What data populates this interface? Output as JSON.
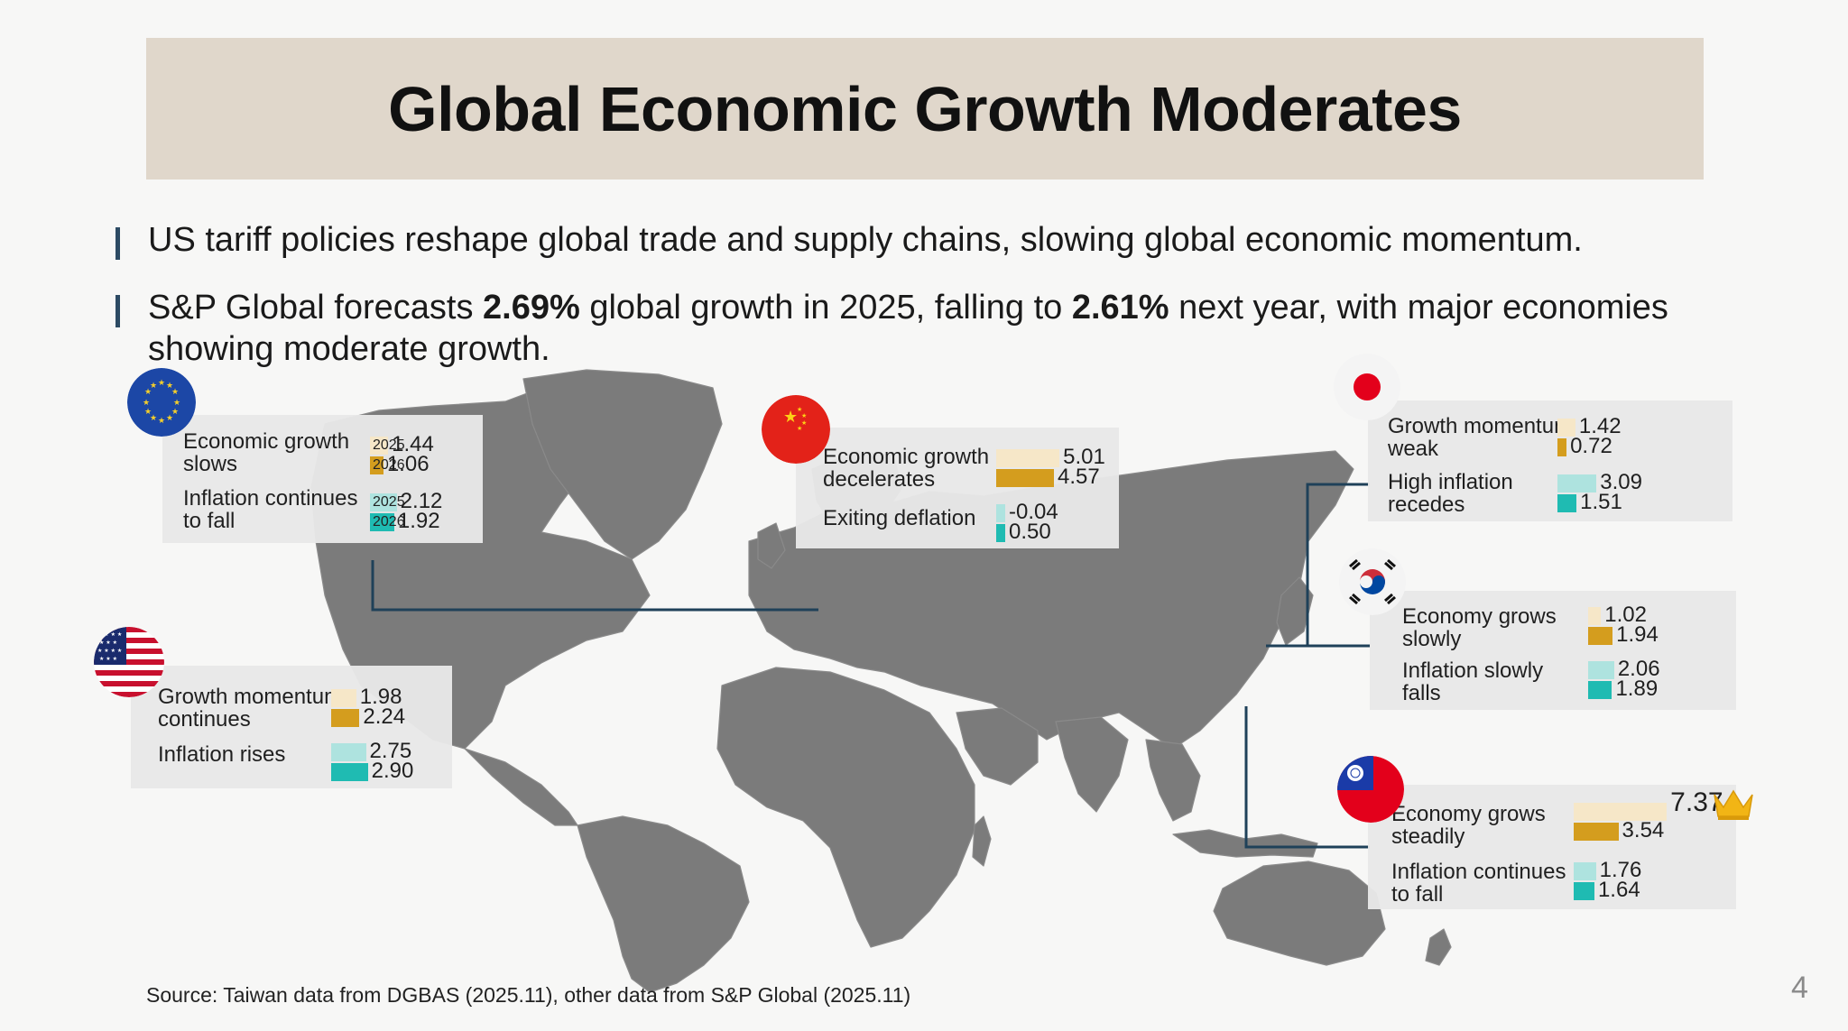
{
  "slide": {
    "title": "Global Economic Growth Moderates",
    "bullets": [
      {
        "parts": [
          "US tariff policies reshape global trade and supply chains, slowing global economic momentum."
        ]
      },
      {
        "pre": "S&P Global forecasts ",
        "bold1": "2.69%",
        "mid": " global growth in 2025, falling to ",
        "bold2": "2.61%",
        "post": " next year, with major economies showing moderate growth."
      }
    ],
    "source": "Source: Taiwan data from DGBAS (2025.11), other data from S&P Global (2025.11)",
    "page_number": "4"
  },
  "colors": {
    "bar_2025_growth": "#f6e7c8",
    "bar_2026_growth": "#d49d1e",
    "bar_2025_inflation": "#aee3df",
    "bar_2026_inflation": "#1fbbb2",
    "connector": "#1f4159",
    "map_land": "#7b7b7b"
  },
  "chart_data": {
    "type": "bar",
    "title": "Global Economic Growth Moderates",
    "series_years": [
      "2025",
      "2026"
    ],
    "units": "%",
    "regions": [
      {
        "id": "eu",
        "name": "Euro Area",
        "flag": "eu-flag",
        "growth_label": "Economic growth slows",
        "growth": [
          1.44,
          1.06
        ],
        "growth_text": [
          "1.44",
          "1.06"
        ],
        "inflation_label": "Inflation continues to fall",
        "inflation": [
          2.12,
          1.92
        ],
        "inflation_text": [
          "2.12",
          "1.92"
        ],
        "show_year_labels": true
      },
      {
        "id": "cn",
        "name": "China",
        "flag": "china-flag",
        "growth_label": "Economic growth decelerates",
        "growth": [
          5.01,
          4.57
        ],
        "growth_text": [
          "5.01",
          "4.57"
        ],
        "inflation_label": "Exiting deflation",
        "inflation": [
          -0.04,
          0.5
        ],
        "inflation_text": [
          "-0.04",
          "0.50"
        ]
      },
      {
        "id": "jp",
        "name": "Japan",
        "flag": "japan-flag",
        "growth_label": "Growth momentum weak",
        "growth": [
          1.42,
          0.72
        ],
        "growth_text": [
          "1.42",
          "0.72"
        ],
        "inflation_label": "High inflation recedes",
        "inflation": [
          3.09,
          1.51
        ],
        "inflation_text": [
          "3.09",
          "1.51"
        ]
      },
      {
        "id": "kr",
        "name": "South Korea",
        "flag": "korea-flag",
        "growth_label": "Economy grows slowly",
        "growth": [
          1.02,
          1.94
        ],
        "growth_text": [
          "1.02",
          "1.94"
        ],
        "inflation_label": "Inflation slowly falls",
        "inflation": [
          2.06,
          1.89
        ],
        "inflation_text": [
          "2.06",
          "1.89"
        ]
      },
      {
        "id": "us",
        "name": "United States",
        "flag": "us-flag",
        "growth_label": "Growth momentum continues",
        "growth": [
          1.98,
          2.24
        ],
        "growth_text": [
          "1.98",
          "2.24"
        ],
        "inflation_label": "Inflation rises",
        "inflation": [
          2.75,
          2.9
        ],
        "inflation_text": [
          "2.75",
          "2.90"
        ]
      },
      {
        "id": "tw",
        "name": "Taiwan",
        "flag": "taiwan-flag",
        "growth_label": "Economy grows steadily",
        "growth": [
          7.37,
          3.54
        ],
        "growth_text": [
          "7.37",
          "3.54"
        ],
        "inflation_label": "Inflation continues to fall",
        "inflation": [
          1.76,
          1.64
        ],
        "inflation_text": [
          "1.76",
          "1.64"
        ],
        "highlight": "crown-icon"
      }
    ]
  }
}
